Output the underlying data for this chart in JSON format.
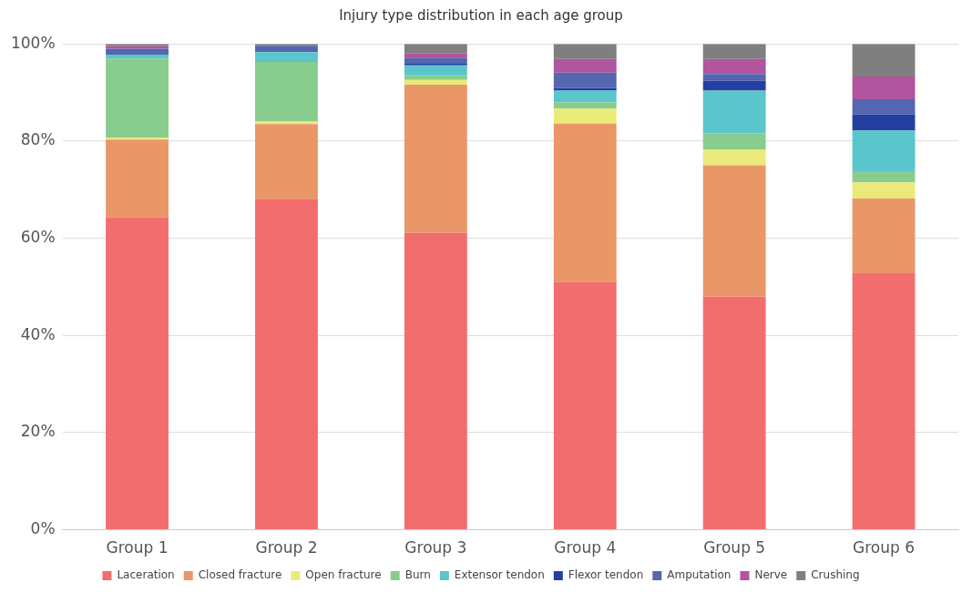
{
  "chart_data": {
    "type": "bar",
    "title": "Injury type distribution in each age group",
    "stacked": true,
    "categories": [
      "Group 1",
      "Group 2",
      "Group 3",
      "Group 4",
      "Group 5",
      "Group 6"
    ],
    "series": [
      {
        "name": "Laceration",
        "color": "#f26d6e",
        "values": [
          64.3,
          68.0,
          61.1,
          50.9,
          48.0,
          52.8
        ]
      },
      {
        "name": "Closed fracture",
        "color": "#ea9768",
        "values": [
          16.0,
          15.5,
          30.5,
          32.7,
          27.0,
          15.4
        ]
      },
      {
        "name": "Open fracture",
        "color": "#eaea7a",
        "values": [
          0.4,
          0.5,
          1.0,
          3.1,
          3.3,
          3.3
        ]
      },
      {
        "name": "Burn",
        "color": "#88cc8e",
        "values": [
          16.3,
          12.3,
          0.9,
          1.3,
          3.3,
          2.3
        ]
      },
      {
        "name": "Extensor tendon",
        "color": "#5bc5cc",
        "values": [
          0.8,
          2.0,
          2.1,
          2.4,
          8.8,
          8.4
        ]
      },
      {
        "name": "Flexor tendon",
        "color": "#2340a0",
        "values": [
          0,
          0,
          0.3,
          0.5,
          2.0,
          3.3
        ]
      },
      {
        "name": "Amputation",
        "color": "#5566b0",
        "values": [
          1.2,
          1.3,
          1.3,
          3.2,
          1.4,
          3.1
        ]
      },
      {
        "name": "Nerve",
        "color": "#b0559e",
        "values": [
          0.5,
          0,
          0.9,
          2.8,
          3.1,
          4.7
        ]
      },
      {
        "name": "Crushing",
        "color": "#7f7f7f",
        "values": [
          0.5,
          0.4,
          1.9,
          3.1,
          3.1,
          6.7
        ]
      }
    ],
    "ylim": [
      0,
      100
    ],
    "yticks": [
      {
        "value": 0,
        "label": "0%"
      },
      {
        "value": 20,
        "label": "20%"
      },
      {
        "value": 40,
        "label": "40%"
      },
      {
        "value": 60,
        "label": "60%"
      },
      {
        "value": 80,
        "label": "80%"
      },
      {
        "value": 100,
        "label": "100%"
      }
    ],
    "grid": "y",
    "legend": "bottom"
  }
}
